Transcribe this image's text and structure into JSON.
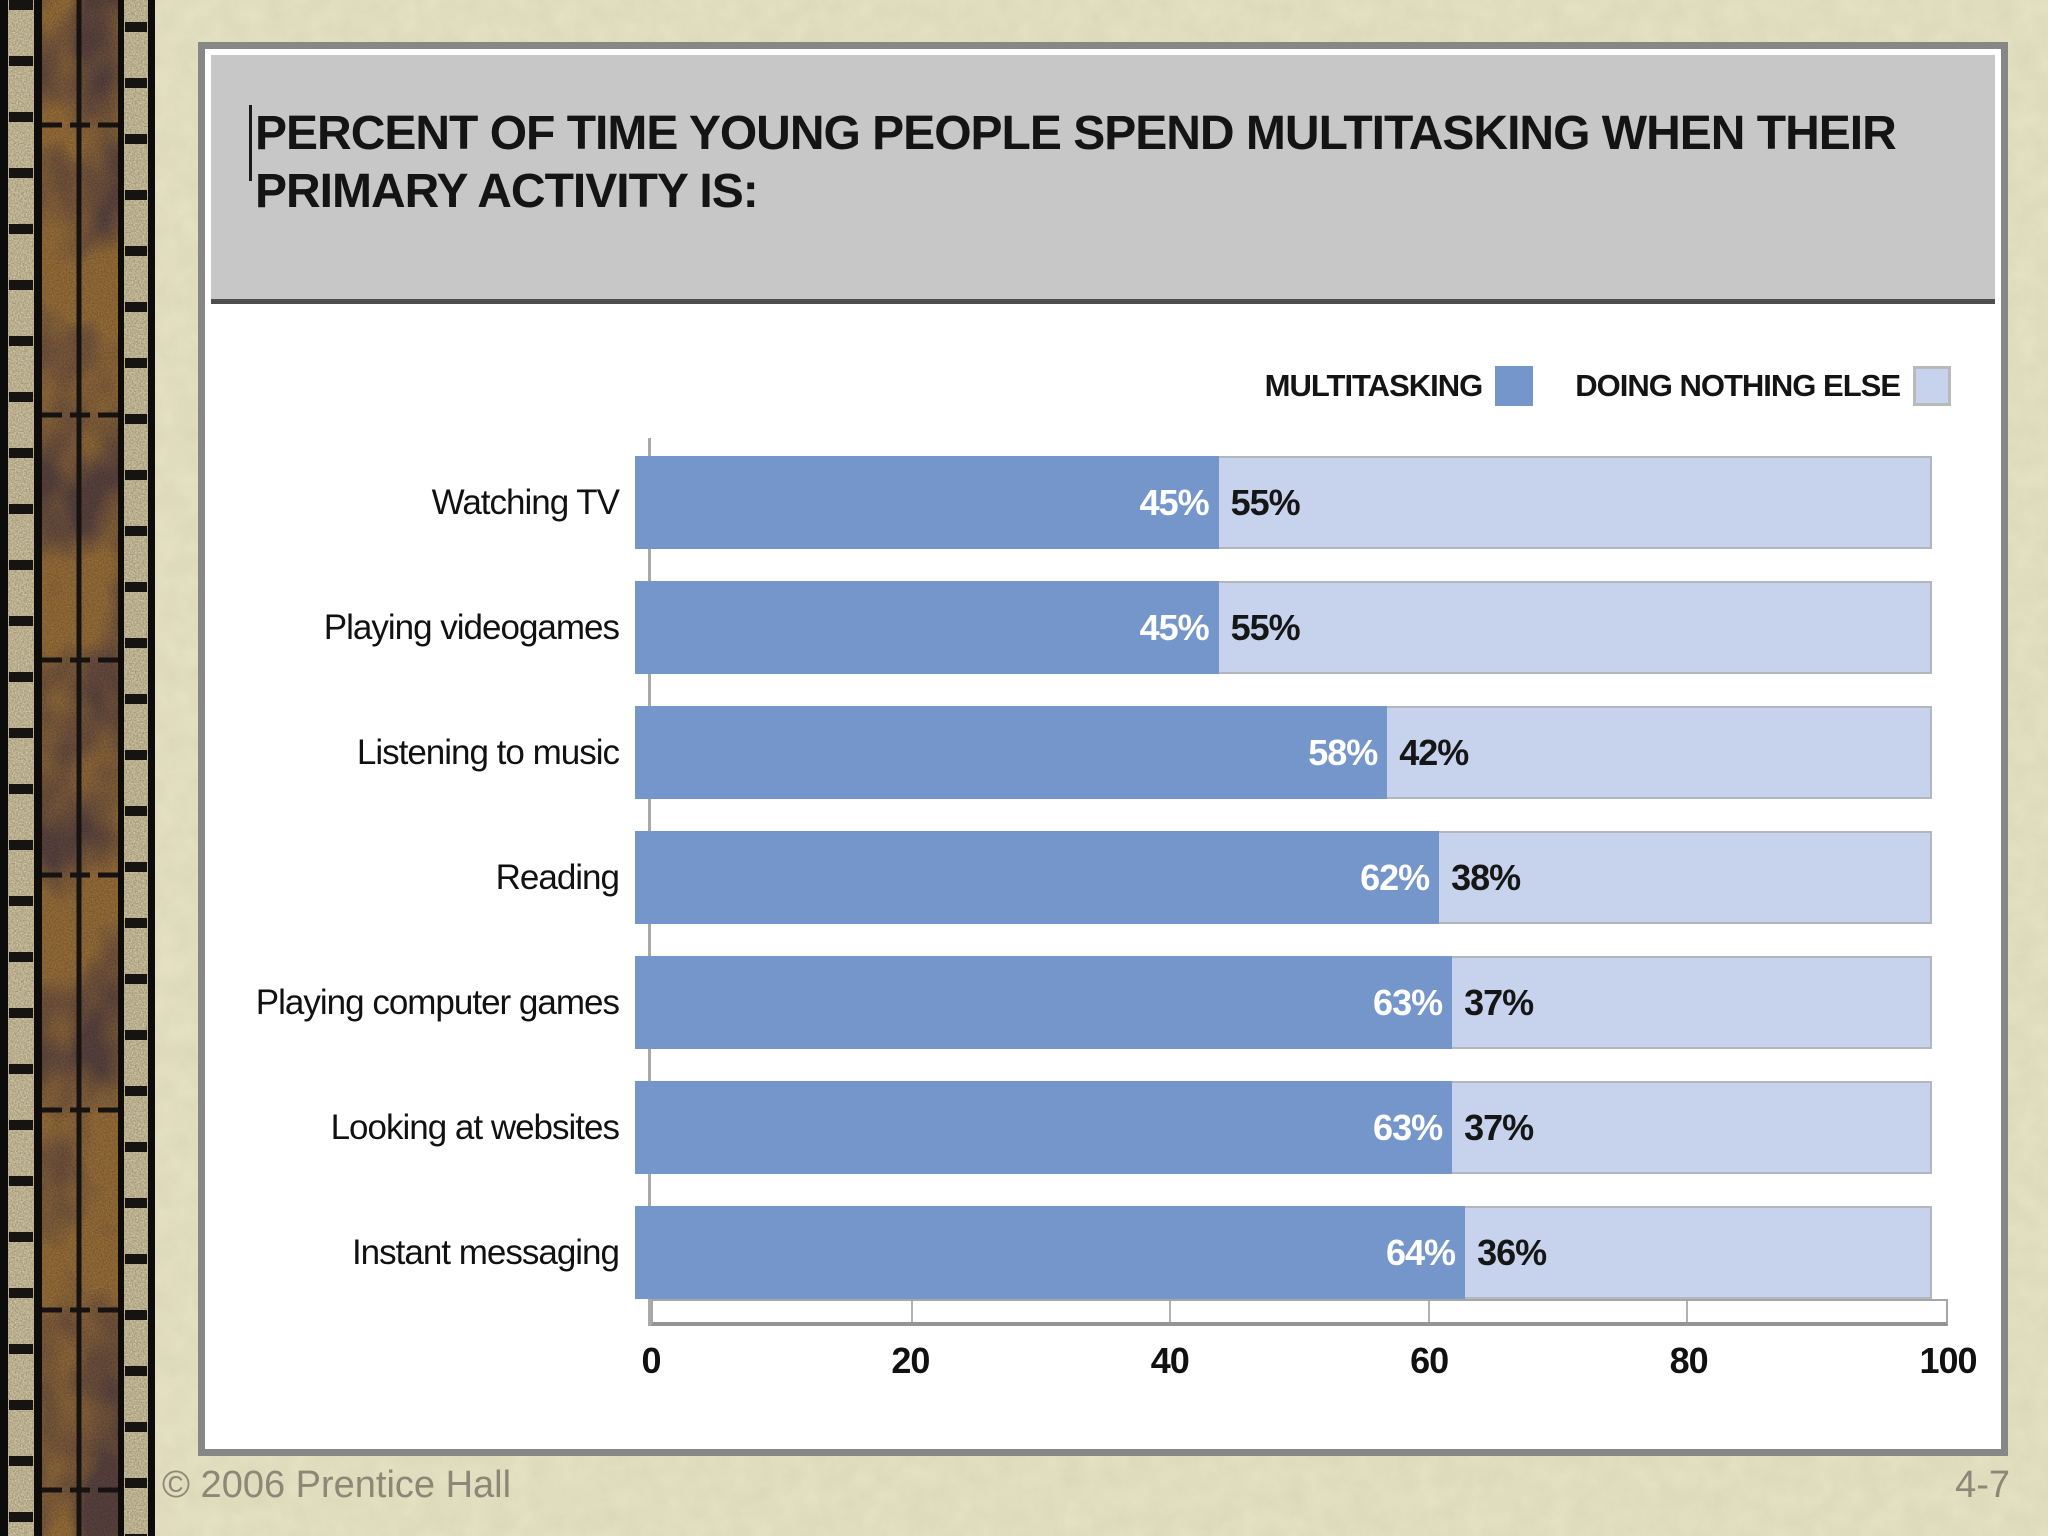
{
  "slide": {
    "footer_left": "© 2006 Prentice Hall",
    "page_number": "4-7"
  },
  "colors": {
    "multitasking_blue": "#7596ca",
    "doing_nothing_light_blue": "#c7d3ec",
    "slide_background": "#e6e2c4",
    "title_background": "#c7c7c7",
    "footer_text": "#8b8878"
  },
  "chart_data": {
    "type": "bar",
    "orientation": "horizontal",
    "stacked": true,
    "title": "PERCENT OF TIME YOUNG PEOPLE SPEND MULTITASKING WHEN THEIR PRIMARY ACTIVITY IS:",
    "title_lines": [
      "PERCENT OF TIME YOUNG PEOPLE SPEND MULTITASKING WHEN THEIR",
      "PRIMARY ACTIVITY IS:"
    ],
    "categories": [
      "Watching TV",
      "Playing videogames",
      "Listening to music",
      "Reading",
      "Playing computer games",
      "Looking at websites",
      "Instant messaging"
    ],
    "series": [
      {
        "name": "MULTITASKING",
        "color": "#7596ca",
        "values": [
          45,
          45,
          58,
          62,
          63,
          63,
          64
        ],
        "labels": [
          "45%",
          "45%",
          "58%",
          "62%",
          "63%",
          "63%",
          "64%"
        ]
      },
      {
        "name": "DOING NOTHING ELSE",
        "color": "#c7d3ec",
        "values": [
          55,
          55,
          42,
          38,
          37,
          37,
          36
        ],
        "labels": [
          "55%",
          "55%",
          "42%",
          "38%",
          "37%",
          "37%",
          "36%"
        ]
      }
    ],
    "xlim": [
      0,
      100
    ],
    "x_ticks": [
      "0",
      "20",
      "40",
      "60",
      "80",
      "100"
    ],
    "legend_position": "top-right",
    "grid": false
  }
}
